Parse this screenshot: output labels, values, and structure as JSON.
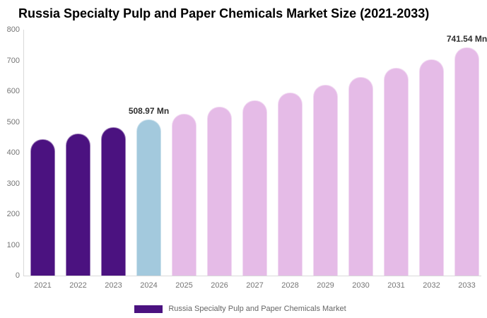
{
  "chart_data": {
    "type": "bar",
    "title": "Russia Specialty Pulp and Paper Chemicals Market Size (2021-2033)",
    "categories": [
      "2021",
      "2022",
      "2023",
      "2024",
      "2025",
      "2026",
      "2027",
      "2028",
      "2029",
      "2030",
      "2031",
      "2032",
      "2033"
    ],
    "values": [
      443,
      462,
      483,
      508.97,
      527,
      549,
      571,
      596,
      621,
      647,
      675,
      704,
      741.54
    ],
    "bar_colors": [
      "#4b1280",
      "#4b1280",
      "#4b1280",
      "#a3c9dd",
      "#e5bbe7",
      "#e5bbe7",
      "#e5bbe7",
      "#e5bbe7",
      "#e5bbe7",
      "#e5bbe7",
      "#e5bbe7",
      "#e5bbe7",
      "#e5bbe7"
    ],
    "xlabel": "",
    "ylabel": "",
    "ylim": [
      0,
      800
    ],
    "ytick_values": [
      0,
      100,
      200,
      300,
      400,
      500,
      600,
      700,
      800
    ],
    "grid": false,
    "legend_position": "bottom",
    "annotations": [
      {
        "category": "2024",
        "text": "508.97 Mn"
      },
      {
        "category": "2033",
        "text": "741.54 Mn"
      }
    ],
    "legend": [
      {
        "label": "Russia Specialty Pulp and Paper Chemicals Market",
        "color": "#4b1280"
      }
    ],
    "colors": {
      "historical_bar": "#4b1280",
      "current_year_bar": "#a3c9dd",
      "forecast_bar": "#e5bbe7",
      "axis_line": "#d9d9d9",
      "tick_text": "#757575",
      "title_text": "#000000",
      "annotation_text": "#2f2f2f",
      "legend_text": "#666666"
    }
  }
}
